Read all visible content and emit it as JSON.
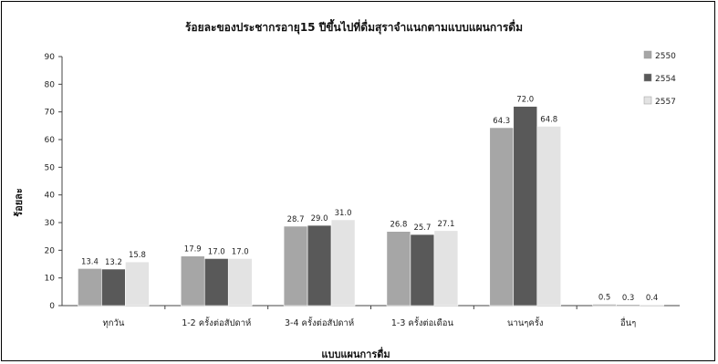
{
  "chart_data": {
    "type": "bar",
    "title": "ร้อยละของประชากรอายุ15 ปีขึ้นไปที่ดื่มสุราจำแนกตามแบบแผนการดื่ม",
    "xlabel": "แบบแผนการดื่ม",
    "ylabel": "ร้อยละ",
    "ylim": [
      0,
      90
    ],
    "yticks": [
      "0",
      "10",
      "20",
      "30",
      "40",
      "50",
      "60",
      "70",
      "80",
      "90"
    ],
    "legend_position": "top-right",
    "categories": [
      "ทุกวัน",
      "1-2 ครั้งต่อสัปดาห์",
      "3-4 ครั้งต่อสัปดาห์",
      "1-3 ครั้งต่อเดือน",
      "นานๆครั้ง",
      "อื่นๆ"
    ],
    "series": [
      {
        "name": "2550",
        "color": "#a6a6a6",
        "values": [
          13.4,
          17.9,
          28.7,
          26.8,
          64.3,
          0.5
        ],
        "labels": [
          "13.4",
          "17.9",
          "28.7",
          "26.8",
          "64.3",
          "0.5"
        ]
      },
      {
        "name": "2554",
        "color": "#595959",
        "values": [
          13.2,
          17.0,
          29.0,
          25.7,
          72.0,
          0.3
        ],
        "labels": [
          "13.2",
          "17.0",
          "29.0",
          "25.7",
          "72.0",
          "0.3"
        ]
      },
      {
        "name": "2557",
        "color": "#e3e3e3",
        "values": [
          15.8,
          17.0,
          31.0,
          27.1,
          64.8,
          0.4
        ],
        "labels": [
          "15.8",
          "17.0",
          "31.0",
          "27.1",
          "64.8",
          "0.4"
        ]
      }
    ]
  }
}
